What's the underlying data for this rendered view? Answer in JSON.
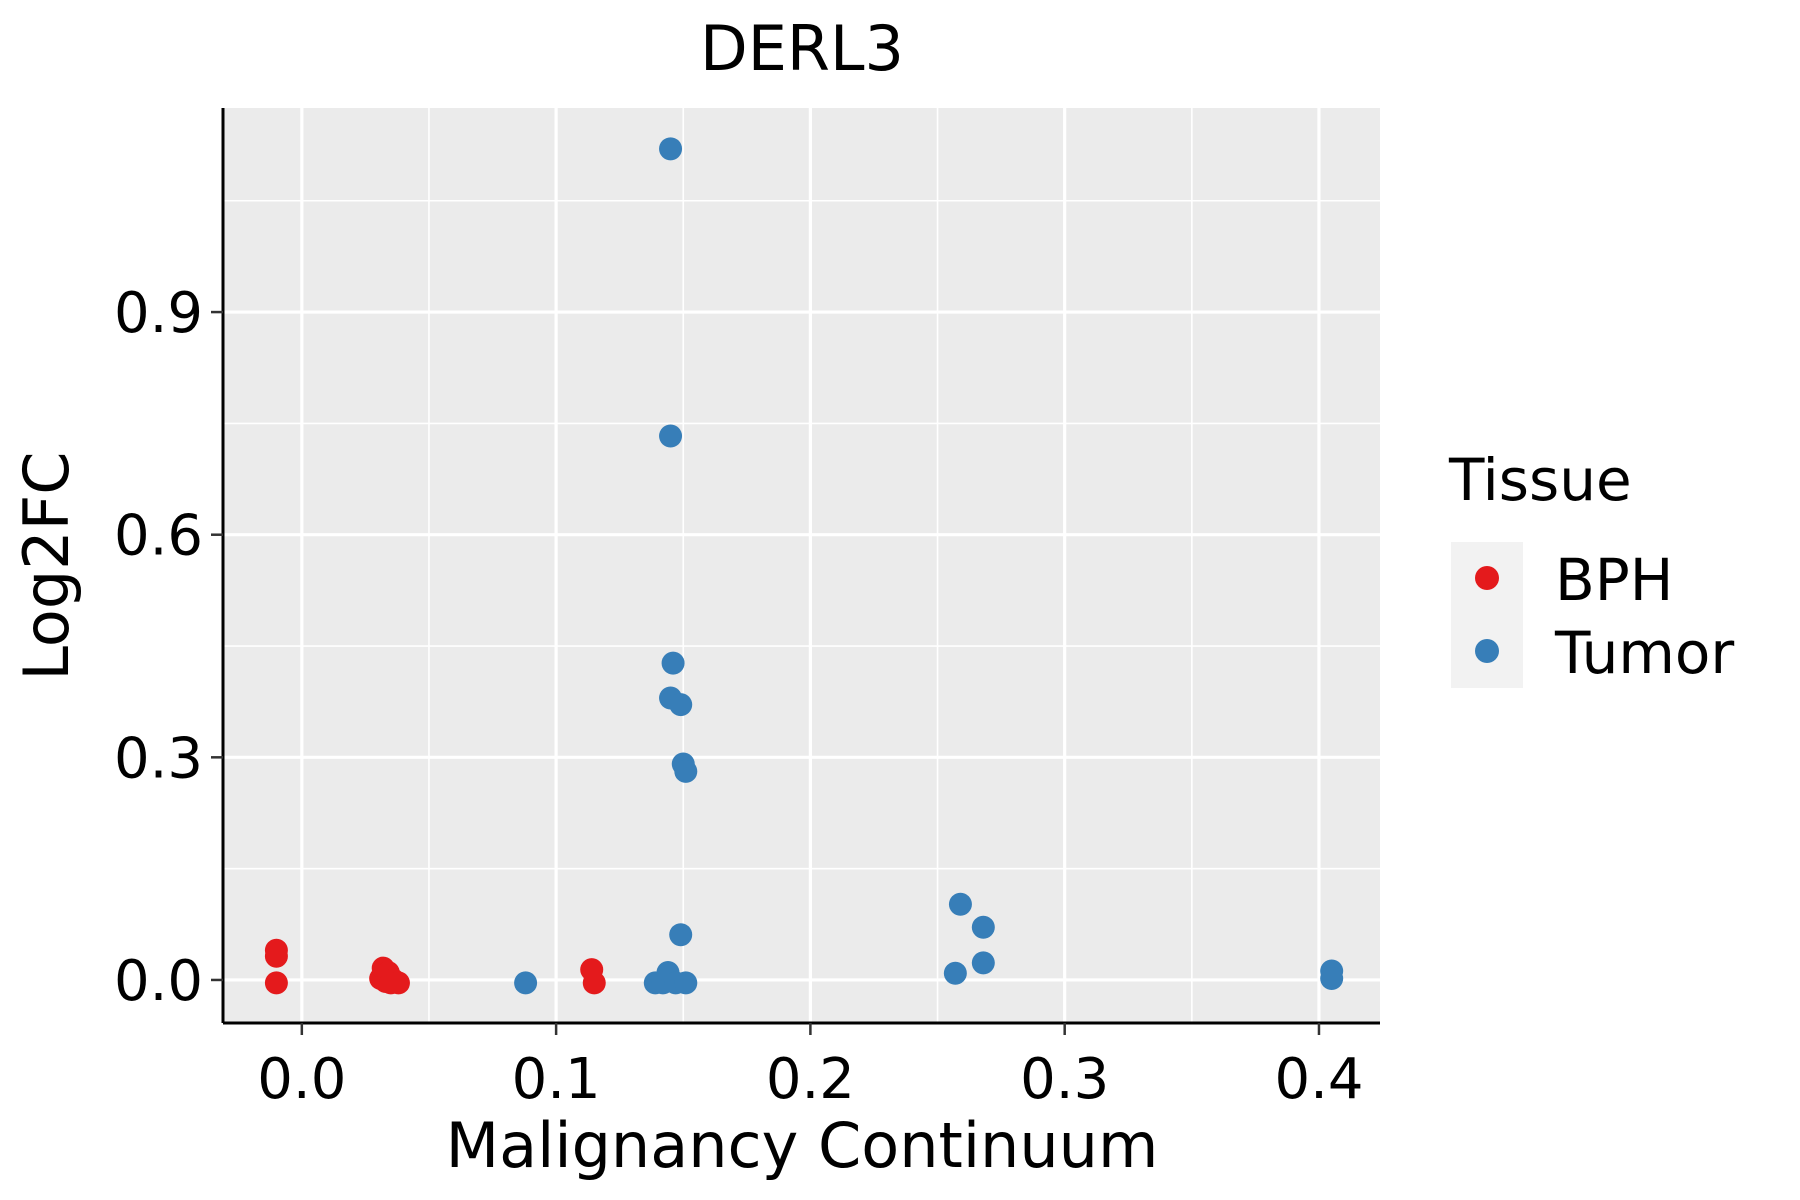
{
  "chart_data": {
    "type": "scatter",
    "title": "DERL3",
    "xlabel": "Malignancy Continuum",
    "ylabel": "Log2FC",
    "xlim": [
      -0.031,
      0.424
    ],
    "ylim": [
      -0.058,
      1.175
    ],
    "x_ticks": [
      0.0,
      0.1,
      0.2,
      0.3,
      0.4
    ],
    "x_tick_labels": [
      "0.0",
      "0.1",
      "0.2",
      "0.3",
      "0.4"
    ],
    "y_ticks": [
      0.0,
      0.3,
      0.6,
      0.9
    ],
    "y_tick_labels": [
      "0.0",
      "0.3",
      "0.6",
      "0.9"
    ],
    "grid": true,
    "legend": {
      "title": "Tissue",
      "position": "right",
      "entries": [
        {
          "name": "BPH",
          "color": "#E41A1C"
        },
        {
          "name": "Tumor",
          "color": "#377EB8"
        }
      ]
    },
    "series": [
      {
        "name": "BPH",
        "color": "#E41A1C",
        "points": [
          {
            "x": -0.01,
            "y": 0.04
          },
          {
            "x": -0.01,
            "y": 0.032
          },
          {
            "x": -0.01,
            "y": -0.004
          },
          {
            "x": 0.031,
            "y": 0.002
          },
          {
            "x": 0.032,
            "y": 0.016
          },
          {
            "x": 0.033,
            "y": -0.002
          },
          {
            "x": 0.034,
            "y": 0.01
          },
          {
            "x": 0.035,
            "y": -0.004
          },
          {
            "x": 0.036,
            "y": 0.0
          },
          {
            "x": 0.038,
            "y": -0.004
          },
          {
            "x": 0.114,
            "y": 0.014
          },
          {
            "x": 0.115,
            "y": -0.004
          }
        ]
      },
      {
        "name": "Tumor",
        "color": "#377EB8",
        "points": [
          {
            "x": 0.088,
            "y": -0.004
          },
          {
            "x": 0.139,
            "y": -0.004
          },
          {
            "x": 0.142,
            "y": -0.004
          },
          {
            "x": 0.144,
            "y": 0.01
          },
          {
            "x": 0.145,
            "y": 1.12
          },
          {
            "x": 0.145,
            "y": 0.733
          },
          {
            "x": 0.146,
            "y": 0.427
          },
          {
            "x": 0.145,
            "y": 0.38
          },
          {
            "x": 0.147,
            "y": -0.004
          },
          {
            "x": 0.149,
            "y": 0.371
          },
          {
            "x": 0.15,
            "y": 0.291
          },
          {
            "x": 0.151,
            "y": 0.281
          },
          {
            "x": 0.149,
            "y": 0.061
          },
          {
            "x": 0.151,
            "y": -0.004
          },
          {
            "x": 0.259,
            "y": 0.102
          },
          {
            "x": 0.268,
            "y": 0.071
          },
          {
            "x": 0.268,
            "y": 0.023
          },
          {
            "x": 0.257,
            "y": 0.009
          },
          {
            "x": 0.405,
            "y": 0.012
          },
          {
            "x": 0.405,
            "y": 0.002
          }
        ]
      }
    ]
  }
}
